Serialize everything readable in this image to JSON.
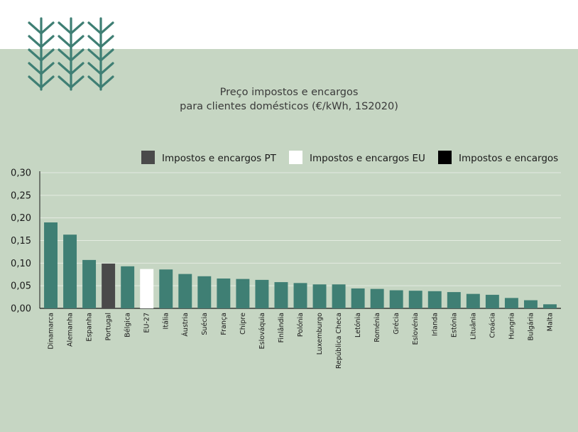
{
  "title": {
    "line1": "Preço impostos e encargos",
    "line2": "para clientes domésticos (€/kWh, 1S2020)"
  },
  "colors": {
    "panel": "#c6d6c3",
    "bar": "#3f7f74",
    "pt": "#4a4a4a",
    "eu": "#ffffff",
    "other": "#000000",
    "logo": "#3f7f74"
  },
  "icons": [
    "wheat-stalk-icon",
    "wheat-stalk-icon",
    "wheat-stalk-icon"
  ],
  "chart_data": {
    "type": "bar",
    "title": "Preço impostos e encargos para clientes domésticos (€/kWh, 1S2020)",
    "ylim": [
      0,
      0.3
    ],
    "yticks": [
      "0,00",
      "0,05",
      "0,10",
      "0,15",
      "0,20",
      "0,25",
      "0,30"
    ],
    "grid": true,
    "legend_position": "top-right",
    "legend": [
      {
        "name": "Impostos e encargos PT",
        "key": "pt"
      },
      {
        "name": "Impostos e encargos EU",
        "key": "eu"
      },
      {
        "name": "Impostos e encargos",
        "key": "other"
      }
    ],
    "categories": [
      "Dinamarca",
      "Alemanha",
      "Espanha",
      "Portugal",
      "Bélgica",
      "EU-27",
      "Itália",
      "Áustria",
      "Suécia",
      "França",
      "Chipre",
      "Eslováquia",
      "Finlândia",
      "Polónia",
      "Luxemburgo",
      "República Checa",
      "Letónia",
      "Roménia",
      "Grécia",
      "Eslovénia",
      "Irlanda",
      "Estónia",
      "Lituânia",
      "Croácia",
      "Hungria",
      "Bulgária",
      "Malta"
    ],
    "values": [
      0.19,
      0.163,
      0.107,
      0.099,
      0.093,
      0.087,
      0.086,
      0.076,
      0.071,
      0.066,
      0.065,
      0.063,
      0.058,
      0.056,
      0.053,
      0.053,
      0.044,
      0.043,
      0.04,
      0.039,
      0.038,
      0.036,
      0.032,
      0.03,
      0.023,
      0.018,
      0.009
    ],
    "highlight": {
      "Portugal": "pt",
      "EU-27": "eu"
    }
  }
}
